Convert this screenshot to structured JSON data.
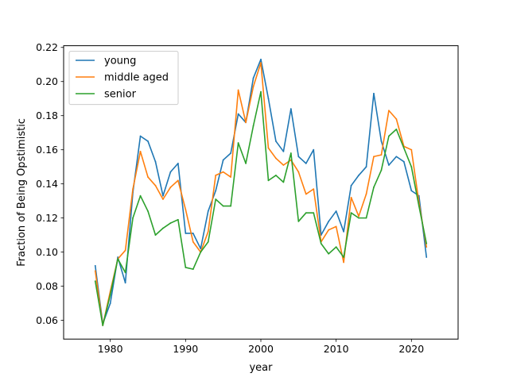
{
  "chart_data": {
    "type": "line",
    "xlabel": "year",
    "ylabel": "Fraction of Being Opstimistic",
    "xlim": [
      1973.8,
      2026.2
    ],
    "ylim": [
      0.049,
      0.221
    ],
    "xticks": [
      1980,
      1990,
      2000,
      2010,
      2020
    ],
    "yticks": [
      0.06,
      0.08,
      0.1,
      0.12,
      0.14,
      0.16,
      0.18,
      0.2,
      0.22
    ],
    "ytick_labels": [
      "0.06",
      "0.08",
      "0.10",
      "0.12",
      "0.14",
      "0.16",
      "0.18",
      "0.20",
      "0.22"
    ],
    "xtick_labels": [
      "1980",
      "1990",
      "2000",
      "2010",
      "2020"
    ],
    "grid": false,
    "legend_position": "top-left",
    "x": [
      1978,
      1979,
      1980,
      1981,
      1982,
      1983,
      1984,
      1985,
      1986,
      1987,
      1988,
      1989,
      1990,
      1991,
      1992,
      1993,
      1994,
      1995,
      1996,
      1997,
      1998,
      1999,
      2000,
      2001,
      2002,
      2003,
      2004,
      2005,
      2006,
      2007,
      2008,
      2009,
      2010,
      2011,
      2012,
      2013,
      2014,
      2015,
      2016,
      2017,
      2018,
      2019,
      2020,
      2021,
      2022
    ],
    "series": [
      {
        "name": "young",
        "color": "#1f77b4",
        "values": [
          0.092,
          0.058,
          0.07,
          0.097,
          0.082,
          0.135,
          0.168,
          0.165,
          0.153,
          0.133,
          0.147,
          0.152,
          0.111,
          0.111,
          0.102,
          0.124,
          0.136,
          0.154,
          0.158,
          0.181,
          0.176,
          0.202,
          0.213,
          0.19,
          0.165,
          0.159,
          0.184,
          0.156,
          0.152,
          0.16,
          0.11,
          0.118,
          0.124,
          0.112,
          0.139,
          0.145,
          0.15,
          0.193,
          0.165,
          0.151,
          0.156,
          0.153,
          0.136,
          0.133,
          0.097
        ]
      },
      {
        "name": "middle aged",
        "color": "#ff7f0e",
        "values": [
          0.089,
          0.057,
          0.077,
          0.096,
          0.101,
          0.137,
          0.159,
          0.144,
          0.139,
          0.131,
          0.138,
          0.142,
          0.125,
          0.106,
          0.1,
          0.112,
          0.145,
          0.147,
          0.144,
          0.195,
          0.176,
          0.197,
          0.211,
          0.161,
          0.155,
          0.151,
          0.154,
          0.147,
          0.134,
          0.137,
          0.106,
          0.113,
          0.115,
          0.094,
          0.132,
          0.121,
          0.134,
          0.156,
          0.157,
          0.183,
          0.178,
          0.162,
          0.16,
          0.129,
          0.103
        ]
      },
      {
        "name": "senior",
        "color": "#2ca02c",
        "values": [
          0.083,
          0.057,
          0.075,
          0.096,
          0.088,
          0.12,
          0.133,
          0.124,
          0.11,
          0.114,
          0.117,
          0.119,
          0.091,
          0.09,
          0.1,
          0.106,
          0.131,
          0.127,
          0.127,
          0.164,
          0.152,
          0.174,
          0.194,
          0.142,
          0.145,
          0.141,
          0.158,
          0.118,
          0.123,
          0.123,
          0.105,
          0.099,
          0.103,
          0.097,
          0.123,
          0.12,
          0.12,
          0.138,
          0.148,
          0.168,
          0.172,
          0.161,
          0.15,
          0.127,
          0.105
        ]
      }
    ]
  }
}
